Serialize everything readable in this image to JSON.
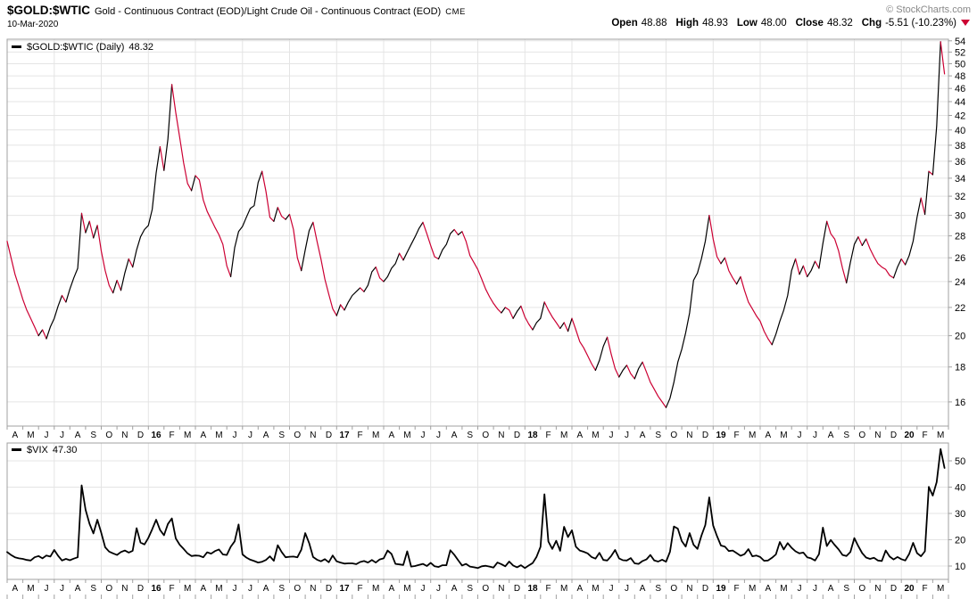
{
  "header": {
    "symbol": "$GOLD:$WTIC",
    "description": "Gold - Continuous Contract (EOD)/Light Crude Oil - Continuous Contract (EOD)",
    "exchange": "CME",
    "copyright": "© StockCharts.com",
    "date": "10-Mar-2020",
    "quote": {
      "open_label": "Open",
      "open": "48.88",
      "high_label": "High",
      "high": "48.93",
      "low_label": "Low",
      "low": "48.00",
      "close_label": "Close",
      "close": "48.32",
      "chg_label": "Chg",
      "chg": "-5.51 (-10.23%)",
      "direction_icon": "down-triangle"
    }
  },
  "colors": {
    "up": "#000000",
    "down": "#cc0033",
    "vix_line": "#000000",
    "grid": "#e4e4e4",
    "border": "#a0a0a0",
    "copyright_text": "#888888",
    "chg_triangle": "#cc0033"
  },
  "chart_data": [
    {
      "type": "line",
      "name": "gold-wtic",
      "title": "$GOLD:$WTIC (Daily)",
      "legend_label": "$GOLD:$WTIC (Daily)",
      "legend_value": "48.32",
      "last": 48.32,
      "scale": "log",
      "grid": true,
      "legend_position": "top-left",
      "ylim": [
        14.75,
        54.3
      ],
      "yticks": [
        16,
        18,
        20,
        22,
        24,
        26,
        28,
        30,
        32,
        34,
        36,
        38,
        40,
        42,
        44,
        46,
        48,
        50,
        52,
        54
      ],
      "x_range": "Apr 2015 - Mar 2020",
      "x_labels": [
        "A",
        "M",
        "J",
        "J",
        "A",
        "S",
        "O",
        "N",
        "D",
        "16",
        "F",
        "M",
        "A",
        "M",
        "J",
        "J",
        "A",
        "S",
        "O",
        "N",
        "D",
        "17",
        "F",
        "M",
        "A",
        "M",
        "J",
        "J",
        "A",
        "S",
        "O",
        "N",
        "D",
        "18",
        "F",
        "M",
        "A",
        "M",
        "J",
        "J",
        "A",
        "S",
        "O",
        "N",
        "D",
        "19",
        "F",
        "M",
        "A",
        "M",
        "J",
        "J",
        "A",
        "S",
        "O",
        "N",
        "D",
        "20",
        "F",
        "M"
      ],
      "two_color_by_direction": true,
      "up_color": "#000000",
      "down_color": "#cc0033",
      "step_months": 0.25,
      "values": [
        27.5,
        26.0,
        24.6,
        23.6,
        22.6,
        21.8,
        21.2,
        20.6,
        20.0,
        20.4,
        19.8,
        20.6,
        21.2,
        22.1,
        22.9,
        22.4,
        23.4,
        24.3,
        25.1,
        30.2,
        28.3,
        29.4,
        27.8,
        29.0,
        26.6,
        24.9,
        23.7,
        23.1,
        24.1,
        23.3,
        24.7,
        25.9,
        25.2,
        26.7,
        27.9,
        28.6,
        29.0,
        30.6,
        34.6,
        37.8,
        34.9,
        38.8,
        46.6,
        42.4,
        39.0,
        35.8,
        33.4,
        32.6,
        34.3,
        33.8,
        31.6,
        30.4,
        29.6,
        28.8,
        28.1,
        27.2,
        25.3,
        24.4,
        26.9,
        28.4,
        28.9,
        29.8,
        30.7,
        31.0,
        33.5,
        34.8,
        32.5,
        29.8,
        29.4,
        30.8,
        29.9,
        29.6,
        30.1,
        28.6,
        26.0,
        24.9,
        26.7,
        28.5,
        29.3,
        27.5,
        25.9,
        24.2,
        23.0,
        21.9,
        21.4,
        22.2,
        21.8,
        22.4,
        22.9,
        23.2,
        23.5,
        23.2,
        23.7,
        24.8,
        25.2,
        24.3,
        24.0,
        24.4,
        25.1,
        25.5,
        26.4,
        25.8,
        26.5,
        27.2,
        27.9,
        28.7,
        29.3,
        28.2,
        27.1,
        26.1,
        25.9,
        26.7,
        27.2,
        28.2,
        28.6,
        28.1,
        28.4,
        27.5,
        26.2,
        25.6,
        25.0,
        24.2,
        23.4,
        22.8,
        22.3,
        21.9,
        21.6,
        22.0,
        21.8,
        21.2,
        21.7,
        22.1,
        21.3,
        20.8,
        20.4,
        20.9,
        21.2,
        22.4,
        21.8,
        21.3,
        20.9,
        20.5,
        20.9,
        20.3,
        21.2,
        20.4,
        19.6,
        19.2,
        18.7,
        18.2,
        17.8,
        18.4,
        19.3,
        19.9,
        18.8,
        17.9,
        17.4,
        17.8,
        18.1,
        17.6,
        17.3,
        17.9,
        18.3,
        17.7,
        17.1,
        16.7,
        16.3,
        16.0,
        15.7,
        16.2,
        17.1,
        18.3,
        19.1,
        20.2,
        21.6,
        24.1,
        24.7,
        25.9,
        27.5,
        30.0,
        27.7,
        26.1,
        25.5,
        26.0,
        24.9,
        24.3,
        23.8,
        24.4,
        23.3,
        22.4,
        21.9,
        21.4,
        21.0,
        20.3,
        19.8,
        19.4,
        20.1,
        21.0,
        21.8,
        22.9,
        24.9,
        25.9,
        24.6,
        25.3,
        24.4,
        24.9,
        25.7,
        25.1,
        27.3,
        29.4,
        28.2,
        27.7,
        26.6,
        25.1,
        23.9,
        25.6,
        27.2,
        27.9,
        27.1,
        27.7,
        26.8,
        26.1,
        25.5,
        25.2,
        25.0,
        24.5,
        24.3,
        25.2,
        25.9,
        25.4,
        26.2,
        27.5,
        29.8,
        31.8,
        30.1,
        34.8,
        34.4,
        40.5,
        53.83,
        48.32
      ]
    },
    {
      "type": "line",
      "name": "vix",
      "title": "$VIX",
      "legend_label": "$VIX",
      "legend_value": "47.30",
      "last": 47.3,
      "scale": "linear",
      "grid": true,
      "legend_position": "top-left",
      "ylim": [
        4.9,
        56.8
      ],
      "yticks": [
        10,
        20,
        30,
        40,
        50
      ],
      "x_range": "Apr 2015 - Mar 2020",
      "x_labels": [
        "A",
        "M",
        "J",
        "J",
        "A",
        "S",
        "O",
        "N",
        "D",
        "16",
        "F",
        "M",
        "A",
        "M",
        "J",
        "J",
        "A",
        "S",
        "O",
        "N",
        "D",
        "17",
        "F",
        "M",
        "A",
        "M",
        "J",
        "J",
        "A",
        "S",
        "O",
        "N",
        "D",
        "18",
        "F",
        "M",
        "A",
        "M",
        "J",
        "J",
        "A",
        "S",
        "O",
        "N",
        "D",
        "19",
        "F",
        "M",
        "A",
        "M",
        "J",
        "J",
        "A",
        "S",
        "O",
        "N",
        "D",
        "20",
        "F",
        "M"
      ],
      "two_color_by_direction": false,
      "line_color": "#000000",
      "step_months": 0.25,
      "values": [
        15.3,
        14.2,
        13.3,
        12.9,
        12.7,
        12.3,
        12.1,
        13.3,
        13.8,
        12.9,
        14.0,
        13.6,
        16.1,
        13.9,
        12.1,
        12.7,
        12.2,
        12.8,
        13.3,
        40.7,
        31.4,
        26.1,
        22.4,
        27.6,
        22.6,
        17.1,
        15.5,
        14.8,
        14.2,
        15.3,
        15.9,
        15.1,
        15.8,
        24.4,
        18.9,
        18.2,
        20.7,
        24.0,
        27.6,
        23.7,
        21.7,
        26.0,
        28.1,
        20.5,
        18.1,
        16.5,
        14.8,
        13.8,
        14.0,
        13.9,
        13.3,
        15.2,
        14.7,
        15.7,
        16.3,
        14.4,
        14.2,
        17.3,
        19.4,
        25.8,
        14.4,
        13.2,
        12.4,
        11.9,
        11.3,
        11.6,
        12.3,
        13.7,
        12.0,
        17.9,
        15.3,
        13.3,
        13.5,
        13.6,
        13.3,
        16.2,
        22.5,
        18.7,
        13.4,
        12.4,
        11.8,
        12.6,
        11.4,
        14.0,
        11.8,
        11.3,
        10.9,
        11.0,
        11.0,
        10.7,
        11.5,
        11.9,
        11.3,
        12.3,
        11.3,
        12.5,
        12.9,
        15.9,
        14.6,
        10.8,
        10.6,
        10.4,
        15.6,
        9.8,
        10.0,
        10.4,
        10.8,
        10.0,
        11.2,
        9.9,
        9.6,
        10.3,
        10.3,
        16.0,
        14.3,
        12.2,
        10.2,
        10.8,
        9.8,
        9.5,
        9.2,
        9.9,
        10.1,
        9.8,
        9.4,
        11.3,
        10.7,
        9.9,
        11.7,
        10.2,
        9.5,
        10.3,
        9.2,
        10.2,
        11.1,
        13.5,
        17.3,
        37.3,
        19.3,
        16.5,
        19.6,
        15.8,
        24.9,
        21.0,
        23.6,
        17.4,
        15.9,
        15.4,
        14.8,
        13.4,
        12.8,
        15.0,
        12.3,
        12.1,
        13.8,
        16.1,
        12.9,
        12.2,
        12.1,
        13.0,
        11.0,
        10.8,
        11.9,
        12.5,
        14.2,
        12.1,
        11.7,
        12.4,
        11.6,
        15.4,
        25.0,
        24.2,
        19.5,
        17.4,
        22.5,
        18.1,
        16.5,
        21.5,
        25.6,
        36.1,
        25.4,
        21.4,
        17.8,
        17.4,
        15.7,
        15.9,
        14.9,
        13.9,
        14.5,
        16.4,
        13.7,
        14.0,
        13.4,
        12.0,
        12.1,
        13.1,
        14.4,
        19.1,
        16.3,
        18.7,
        16.9,
        15.6,
        14.8,
        15.1,
        13.3,
        12.9,
        12.1,
        14.5,
        24.6,
        17.6,
        19.9,
        18.0,
        16.3,
        14.2,
        13.8,
        15.3,
        20.6,
        17.6,
        14.9,
        13.2,
        12.7,
        13.1,
        12.1,
        11.9,
        15.9,
        13.6,
        12.5,
        13.4,
        12.6,
        12.1,
        14.6,
        18.8,
        14.9,
        13.7,
        15.6,
        40.1,
        36.8,
        41.9,
        54.5,
        47.3
      ]
    }
  ]
}
